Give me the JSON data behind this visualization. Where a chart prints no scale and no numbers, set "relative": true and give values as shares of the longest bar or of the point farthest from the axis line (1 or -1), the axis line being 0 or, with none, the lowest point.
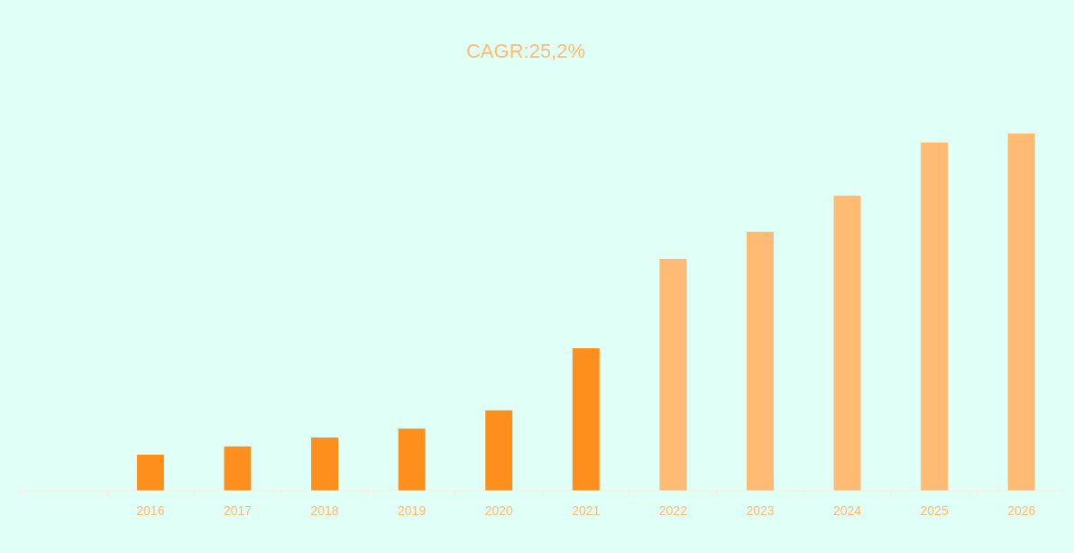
{
  "chart_data": {
    "type": "bar",
    "title": "CAGR:25,2%",
    "relative": true,
    "categories": [
      null,
      "2016",
      "2017",
      "2018",
      "2019",
      "2020",
      "2021",
      "2022",
      "2023",
      "2024",
      "2025",
      "2026"
    ],
    "values": [
      null,
      0.101,
      0.124,
      0.149,
      0.174,
      0.225,
      0.399,
      0.649,
      0.725,
      0.826,
      0.975,
      1
    ],
    "colors": [
      null,
      "#ff8f1c",
      "#ff8f1c",
      "#ff8f1c",
      "#ff8f1c",
      "#ff8f1c",
      "#ff8f1c",
      "#ffbb73",
      "#ffbb73",
      "#ffbb73",
      "#ffbb73",
      "#ffbb73"
    ]
  }
}
